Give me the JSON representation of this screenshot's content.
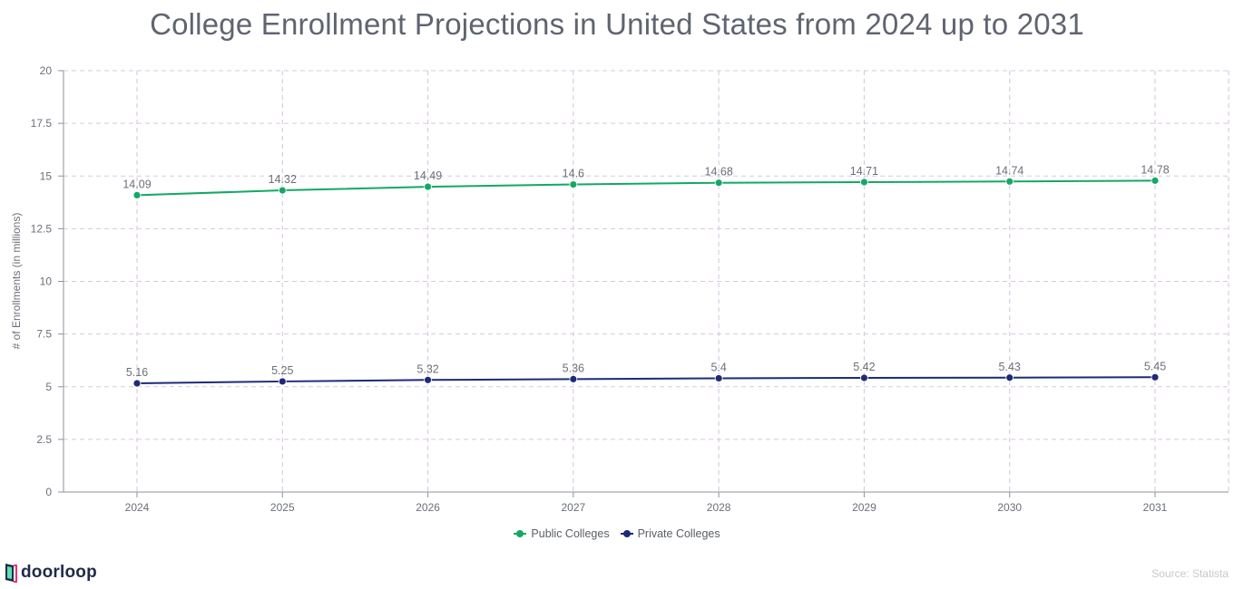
{
  "chart_data": {
    "type": "line",
    "title": "College Enrollment Projections in United States from 2024 up to 2031",
    "xlabel": "",
    "ylabel": "# of Enrollments (in millions)",
    "categories": [
      "2024",
      "2025",
      "2026",
      "2027",
      "2028",
      "2029",
      "2030",
      "2031"
    ],
    "ylim": [
      0,
      20
    ],
    "yticks": [
      0,
      2.5,
      5,
      7.5,
      10,
      12.5,
      15,
      17.5,
      20
    ],
    "grid": true,
    "legend_position": "bottom-center",
    "series": [
      {
        "name": "Public Colleges",
        "color": "#13a866",
        "values": [
          14.09,
          14.32,
          14.49,
          14.6,
          14.68,
          14.71,
          14.74,
          14.78
        ],
        "labels": [
          "14.09",
          "14.32",
          "14.49",
          "14.6",
          "14.68",
          "14.71",
          "14.74",
          "14.78"
        ]
      },
      {
        "name": "Private Colleges",
        "color": "#1e2a78",
        "values": [
          5.16,
          5.25,
          5.32,
          5.36,
          5.4,
          5.42,
          5.43,
          5.45
        ],
        "labels": [
          "5.16",
          "5.25",
          "5.32",
          "5.36",
          "5.4",
          "5.42",
          "5.43",
          "5.45"
        ]
      }
    ]
  },
  "brand": {
    "name": "doorloop",
    "icon": "doorloop-logo-icon"
  },
  "source": "Source: Statista",
  "colors": {
    "grid": "#d9c7e0",
    "axis": "#8f9299",
    "text": "#6b6f78"
  }
}
